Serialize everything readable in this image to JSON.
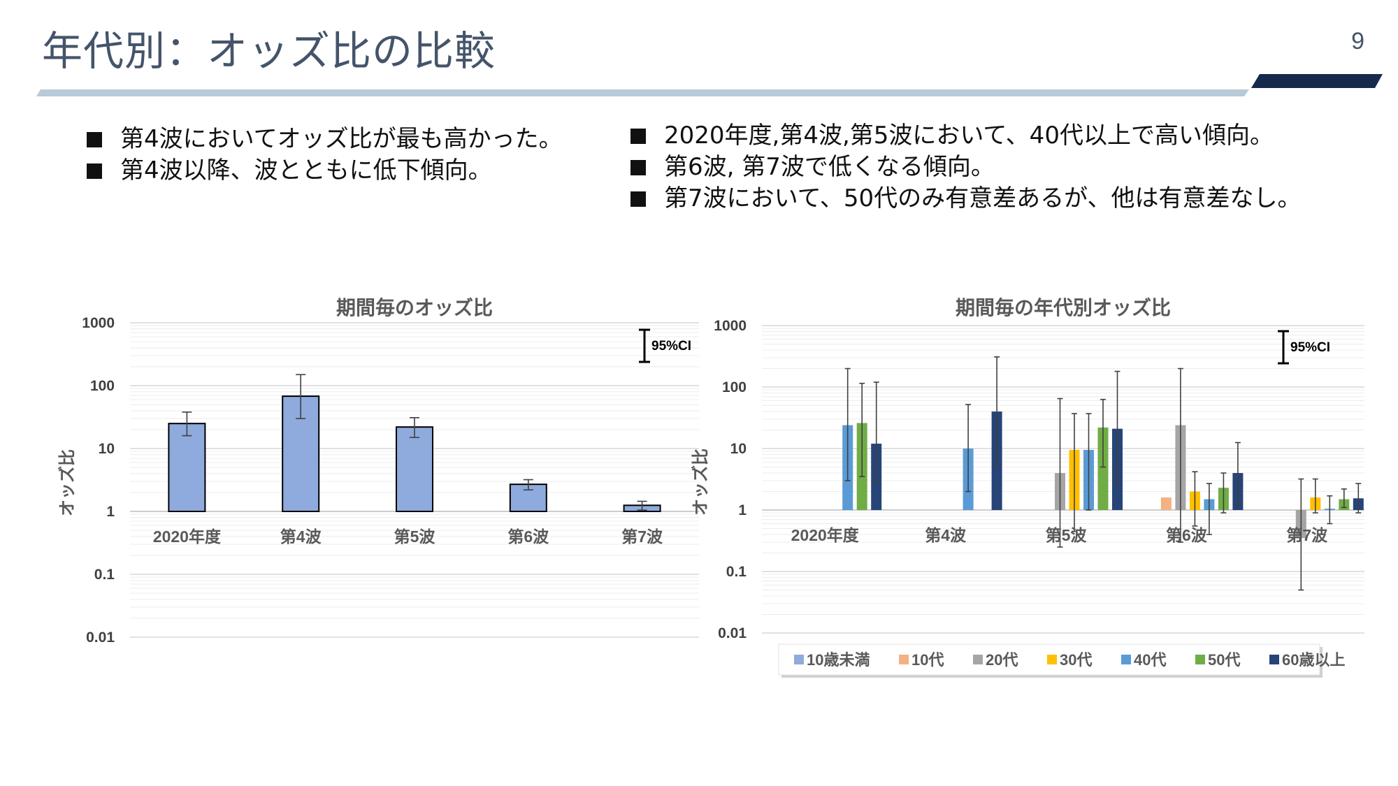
{
  "slide": {
    "title": "年代別：オッズ比の比較",
    "page_number": "9"
  },
  "bullets_left": [
    "第4波においてオッズ比が最も高かった。",
    "第4波以降、波とともに低下傾向。"
  ],
  "bullets_right": [
    "2020年度,第4波,第5波において、40代以上で高い傾向。",
    "第6波, 第7波で低くなる傾向。",
    "第7波において、50代のみ有意差あるが、他は有意差なし。"
  ],
  "colors": {
    "title_text": "#44546a",
    "bar_main": "#8faadc",
    "title_bar_light": "#b8cad8",
    "title_bar_dark": "#152a4d"
  },
  "chart_data": [
    {
      "type": "bar",
      "title": "期間毎のオッズ比",
      "ylabel": "オッズ比",
      "xlabel": "",
      "y_scale": "log",
      "ylim": [
        0.01,
        1000
      ],
      "y_ticks": [
        "1000",
        "100",
        "10",
        "1",
        "0.1",
        "0.01"
      ],
      "categories": [
        "2020年度",
        "第4波",
        "第5波",
        "第6波",
        "第7波"
      ],
      "values": [
        25,
        68,
        22,
        2.7,
        1.25
      ],
      "ci_lower": [
        16,
        30,
        15,
        2.2,
        1.05
      ],
      "ci_upper": [
        38,
        150,
        31,
        3.2,
        1.45
      ],
      "ci_legend": "95%CI",
      "grid": true,
      "color": "#8faadc"
    },
    {
      "type": "bar",
      "title": "期間毎の年代別オッズ比",
      "ylabel": "オッズ比",
      "xlabel": "",
      "y_scale": "log",
      "ylim": [
        0.01,
        1000
      ],
      "y_ticks": [
        "1000",
        "100",
        "10",
        "1",
        "0.1",
        "0.01"
      ],
      "categories": [
        "2020年度",
        "第4波",
        "第5波",
        "第6波",
        "第7波"
      ],
      "ci_legend": "95%CI",
      "legend_position": "bottom",
      "grid": true,
      "series": [
        {
          "name": "10歳未満",
          "color": "#8faadc",
          "values": [
            null,
            null,
            null,
            null,
            null
          ],
          "ci_lower": [
            null,
            null,
            null,
            null,
            null
          ],
          "ci_upper": [
            null,
            null,
            null,
            null,
            null
          ]
        },
        {
          "name": "10代",
          "color": "#f4b183",
          "values": [
            null,
            null,
            null,
            1.6,
            null
          ],
          "ci_lower": [
            null,
            null,
            null,
            null,
            null
          ],
          "ci_upper": [
            null,
            null,
            null,
            null,
            null
          ]
        },
        {
          "name": "20代",
          "color": "#a5a5a5",
          "values": [
            null,
            null,
            4,
            24,
            0.35
          ],
          "ci_lower": [
            null,
            null,
            0.25,
            0.3,
            0.05
          ],
          "ci_upper": [
            null,
            null,
            65,
            200,
            3.2
          ]
        },
        {
          "name": "30代",
          "color": "#ffc000",
          "values": [
            null,
            null,
            9.5,
            2.0,
            1.6
          ],
          "ci_lower": [
            null,
            null,
            0.45,
            0.55,
            0.9
          ],
          "ci_upper": [
            null,
            null,
            37,
            4.2,
            3.2
          ]
        },
        {
          "name": "40代",
          "color": "#5b9bd5",
          "values": [
            24,
            10,
            9.5,
            1.5,
            1.05
          ],
          "ci_lower": [
            3.0,
            2.0,
            1.0,
            0.4,
            0.6
          ],
          "ci_upper": [
            200,
            52,
            37,
            2.7,
            1.7
          ]
        },
        {
          "name": "50代",
          "color": "#70ad47",
          "values": [
            26,
            null,
            22,
            2.3,
            1.5
          ],
          "ci_lower": [
            3.5,
            null,
            5.0,
            0.9,
            1.1
          ],
          "ci_upper": [
            115,
            null,
            63,
            4.0,
            2.2
          ]
        },
        {
          "name": "60歳以上",
          "color": "#264478",
          "values": [
            12,
            40,
            21,
            4.0,
            1.55
          ],
          "ci_lower": [
            3.0,
            5.0,
            2.5,
            1.2,
            0.9
          ],
          "ci_upper": [
            120,
            310,
            180,
            12.5,
            2.7
          ]
        }
      ]
    }
  ]
}
